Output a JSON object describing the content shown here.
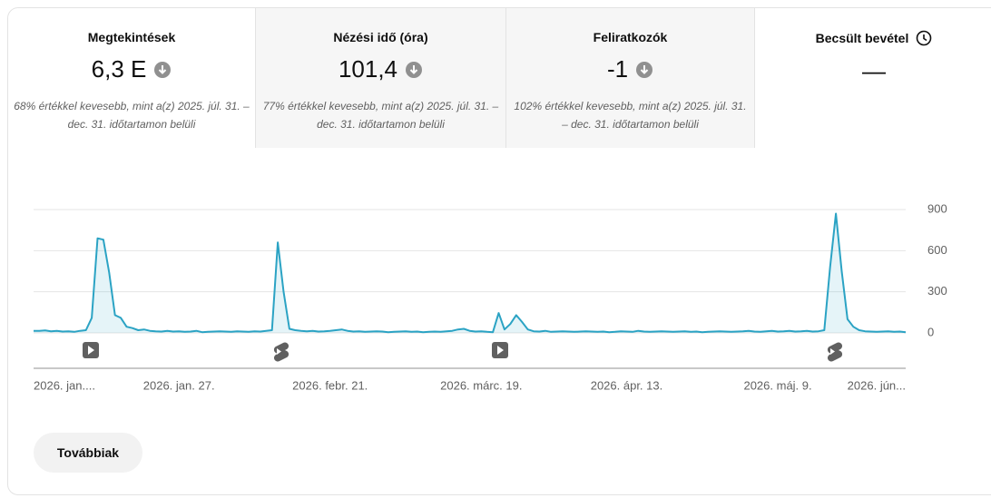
{
  "metrics": [
    {
      "title": "Megtekintések",
      "value": "6,3 E",
      "note": "68% értékkel kevesebb, mint a(z) 2025. júl. 31. – dec. 31. időtartamon belüli"
    },
    {
      "title": "Nézési idő (óra)",
      "value": "101,4",
      "note": "77% értékkel kevesebb, mint a(z) 2025. júl. 31. – dec. 31. időtartamon belüli"
    },
    {
      "title": "Feliratkozók",
      "value": "-1",
      "note": "102% értékkel kevesebb, mint a(z) 2025. júl. 31. – dec. 31. időtartamon belüli"
    },
    {
      "title": "Becsült bevétel",
      "value": "—"
    }
  ],
  "chart_data": {
    "type": "line",
    "color": "#2ba3c4",
    "categories": [
      "2026. jan....",
      null,
      null,
      null,
      null,
      null,
      null,
      null,
      null,
      null,
      null,
      null,
      null,
      null,
      null,
      null,
      null,
      null,
      null,
      null,
      null,
      null,
      null,
      null,
      null,
      "2026. jan. 27.",
      null,
      null,
      null,
      null,
      null,
      null,
      null,
      null,
      null,
      null,
      null,
      null,
      null,
      null,
      null,
      null,
      null,
      null,
      null,
      null,
      null,
      null,
      null,
      null,
      null,
      "2026. febr. 21.",
      null,
      null,
      null,
      null,
      null,
      null,
      null,
      null,
      null,
      null,
      null,
      null,
      null,
      null,
      null,
      null,
      null,
      null,
      null,
      null,
      null,
      null,
      null,
      null,
      null,
      "2026. márc. 19.",
      null,
      null,
      null,
      null,
      null,
      null,
      null,
      null,
      null,
      null,
      null,
      null,
      null,
      null,
      null,
      null,
      null,
      null,
      null,
      null,
      null,
      null,
      null,
      null,
      "2026. ápr. 13.",
      null,
      null,
      null,
      null,
      null,
      null,
      null,
      null,
      null,
      null,
      null,
      null,
      null,
      null,
      null,
      null,
      null,
      null,
      null,
      null,
      null,
      null,
      null,
      null,
      null,
      "2026. máj. 9.",
      null,
      null,
      null,
      null,
      null,
      null,
      null,
      null,
      null,
      null,
      null,
      null,
      null,
      null,
      null,
      null,
      null,
      null,
      null,
      null,
      null,
      "2026. jún..."
    ],
    "values": [
      15,
      15,
      18,
      12,
      15,
      10,
      12,
      8,
      15,
      20,
      110,
      690,
      680,
      440,
      130,
      110,
      45,
      35,
      20,
      25,
      15,
      12,
      10,
      15,
      10,
      12,
      8,
      10,
      15,
      5,
      8,
      10,
      12,
      10,
      8,
      12,
      10,
      8,
      12,
      10,
      15,
      20,
      660,
      300,
      30,
      20,
      15,
      12,
      15,
      10,
      12,
      15,
      20,
      25,
      15,
      10,
      12,
      8,
      10,
      12,
      10,
      5,
      8,
      10,
      12,
      8,
      10,
      5,
      8,
      10,
      8,
      12,
      15,
      25,
      30,
      15,
      10,
      12,
      8,
      5,
      145,
      25,
      65,
      130,
      80,
      25,
      12,
      10,
      15,
      8,
      10,
      12,
      10,
      8,
      10,
      12,
      10,
      8,
      10,
      5,
      8,
      12,
      10,
      8,
      15,
      10,
      8,
      10,
      12,
      10,
      8,
      10,
      12,
      8,
      10,
      5,
      8,
      10,
      12,
      10,
      8,
      10,
      12,
      15,
      10,
      8,
      12,
      15,
      10,
      12,
      15,
      10,
      12,
      15,
      10,
      12,
      20,
      480,
      870,
      450,
      100,
      45,
      20,
      12,
      10,
      8,
      10,
      12,
      8,
      10,
      5
    ],
    "ylim": [
      0,
      900
    ],
    "yticks": [
      0,
      300,
      600,
      900
    ],
    "grid": true
  },
  "button": "Továbbiak"
}
